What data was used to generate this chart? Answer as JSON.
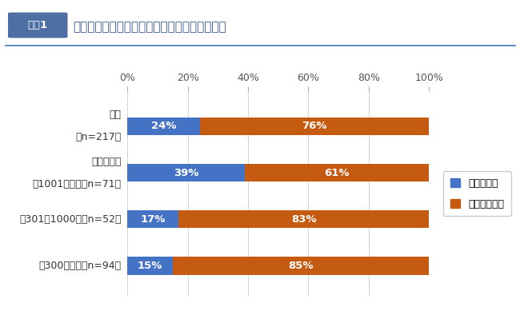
{
  "title_badge": "図表1",
  "title_text": "リスキリングの実施状況（全体／企業規模別）",
  "categories_line1": [
    "全体",
    "企業規模別",
    "：301～1000名（n=52）",
    "：300名以下（n=94）"
  ],
  "categories_line2": [
    "（n=217）",
    "：1001名以上（n=71）",
    "",
    ""
  ],
  "values_doing": [
    24,
    39,
    17,
    15
  ],
  "values_not_doing": [
    76,
    61,
    83,
    85
  ],
  "color_doing": "#4472C4",
  "color_not_doing": "#C55A11",
  "legend_doing": "行っている",
  "legend_not_doing": "行っていない",
  "xlim": [
    0,
    100
  ],
  "xticks": [
    0,
    20,
    40,
    60,
    80,
    100
  ],
  "xticklabels": [
    "0%",
    "20%",
    "40%",
    "60%",
    "80%",
    "100%"
  ],
  "badge_bg_color": "#4E6FA3",
  "badge_text_color": "#ffffff",
  "title_color": "#3B5999",
  "background_color": "#ffffff",
  "bar_height": 0.38,
  "bar_text_color": "#ffffff",
  "bar_fontsize": 9.5,
  "title_fontsize": 11,
  "badge_fontsize": 9.5,
  "axis_fontsize": 9,
  "legend_fontsize": 9,
  "ytick_fontsize": 9,
  "grid_color": "#cccccc",
  "header_line_color": "#4472C4"
}
